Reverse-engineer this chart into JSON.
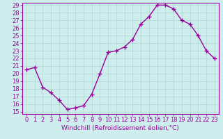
{
  "x": [
    0,
    1,
    2,
    3,
    4,
    5,
    6,
    7,
    8,
    9,
    10,
    11,
    12,
    13,
    14,
    15,
    16,
    17,
    18,
    19,
    20,
    21,
    22,
    23
  ],
  "y": [
    20.5,
    20.8,
    18.2,
    17.5,
    16.5,
    15.3,
    15.5,
    15.8,
    17.3,
    20.0,
    22.8,
    23.0,
    23.5,
    24.5,
    26.5,
    27.5,
    29.0,
    29.0,
    28.5,
    27.0,
    26.5,
    25.0,
    23.0,
    22.0
  ],
  "color": "#990099",
  "bg_color": "#ceeeed",
  "grid_color": "#aed8d4",
  "xlabel": "Windchill (Refroidissement éolien,°C)",
  "ylim_min": 15,
  "ylim_max": 29,
  "xlim_min": 0,
  "xlim_max": 23,
  "yticks": [
    15,
    16,
    17,
    18,
    19,
    20,
    21,
    22,
    23,
    24,
    25,
    26,
    27,
    28,
    29
  ],
  "xticks": [
    0,
    1,
    2,
    3,
    4,
    5,
    6,
    7,
    8,
    9,
    10,
    11,
    12,
    13,
    14,
    15,
    16,
    17,
    18,
    19,
    20,
    21,
    22,
    23
  ],
  "marker": "+",
  "markersize": 4,
  "markeredgewidth": 1.0,
  "linewidth": 1.0,
  "xlabel_fontsize": 6.5,
  "tick_fontsize": 6.0
}
